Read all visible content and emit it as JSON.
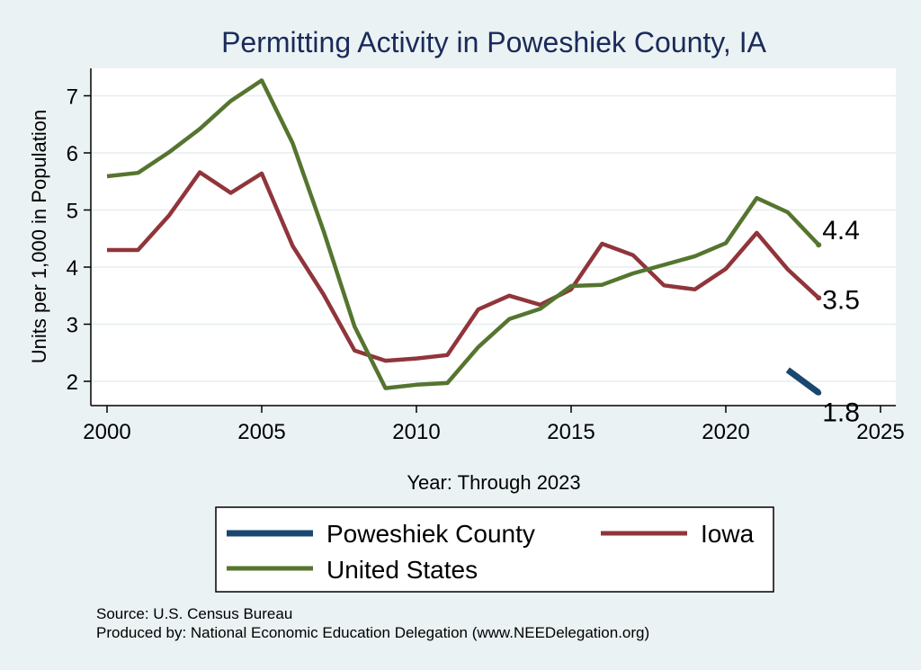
{
  "chart_data": {
    "type": "line",
    "title": "Permitting Activity in Poweshiek County, IA",
    "xlabel": "Year: Through 2023",
    "ylabel": "Units per 1,000 in Population",
    "xlim": [
      2000,
      2025
    ],
    "ylim": [
      1.6,
      7.4
    ],
    "x_ticks": [
      "2000",
      "2005",
      "2010",
      "2015",
      "2020",
      "2025"
    ],
    "y_ticks": [
      "2",
      "3",
      "4",
      "5",
      "6",
      "7"
    ],
    "grid": true,
    "legend_position": "bottom",
    "series": [
      {
        "name": "Poweshiek County",
        "color": "#1a476f",
        "x": [
          2022,
          2023
        ],
        "values": [
          2.2,
          1.8
        ],
        "end_label": "1.8"
      },
      {
        "name": "Iowa",
        "color": "#90353b",
        "x": [
          2000,
          2001,
          2002,
          2003,
          2004,
          2005,
          2006,
          2007,
          2008,
          2009,
          2010,
          2011,
          2012,
          2013,
          2014,
          2015,
          2016,
          2017,
          2018,
          2019,
          2020,
          2021,
          2022,
          2023
        ],
        "values": [
          4.3,
          4.3,
          4.9,
          5.66,
          5.3,
          5.64,
          4.37,
          3.52,
          2.54,
          2.36,
          2.4,
          2.46,
          3.26,
          3.5,
          3.34,
          3.61,
          4.41,
          4.21,
          3.68,
          3.61,
          3.97,
          4.6,
          3.96,
          3.46
        ],
        "end_label": "3.5"
      },
      {
        "name": "United States",
        "color": "#55752f",
        "x": [
          2000,
          2001,
          2002,
          2003,
          2004,
          2005,
          2006,
          2007,
          2008,
          2009,
          2010,
          2011,
          2012,
          2013,
          2014,
          2015,
          2016,
          2017,
          2018,
          2019,
          2020,
          2021,
          2022,
          2023
        ],
        "values": [
          5.59,
          5.65,
          6.01,
          6.42,
          6.91,
          7.27,
          6.17,
          4.63,
          2.96,
          1.88,
          1.94,
          1.97,
          2.6,
          3.09,
          3.27,
          3.67,
          3.69,
          3.89,
          4.04,
          4.19,
          4.42,
          5.21,
          4.96,
          4.39
        ],
        "end_label": "4.4"
      }
    ],
    "source_note": "Source: U.S. Census Bureau",
    "produced_note": "Produced by: National Economic Education Delegation (www.NEEDelegation.org)"
  }
}
